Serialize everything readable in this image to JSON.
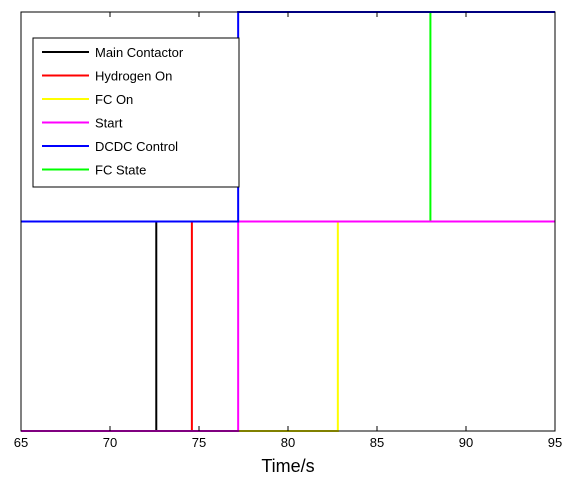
{
  "chart_data": {
    "type": "line",
    "xlabel": "Time/s",
    "ylabel": "",
    "title": "",
    "xlim": [
      65,
      95
    ],
    "ylim": [
      0,
      1
    ],
    "x_ticks": [
      "65",
      "70",
      "75",
      "80",
      "85",
      "90",
      "95"
    ],
    "x_tick_values": [
      65,
      70,
      75,
      80,
      85,
      90,
      95
    ],
    "grid": false,
    "legend_position": "top-left",
    "series": [
      {
        "name": "Main Contactor",
        "color": "#000000",
        "points": [
          [
            65,
            0
          ],
          [
            72.6,
            0
          ],
          [
            72.6,
            0.5
          ],
          [
            95,
            0.5
          ]
        ]
      },
      {
        "name": "Hydrogen On",
        "color": "#ff0000",
        "points": [
          [
            65,
            0
          ],
          [
            74.6,
            0
          ],
          [
            74.6,
            0.5
          ],
          [
            95,
            0.5
          ]
        ]
      },
      {
        "name": "FC On",
        "color": "#ffff00",
        "points": [
          [
            65,
            0
          ],
          [
            82.8,
            0
          ],
          [
            82.8,
            0.5
          ],
          [
            95,
            0.5
          ]
        ]
      },
      {
        "name": "Start",
        "color": "#ff00ff",
        "points": [
          [
            65,
            0
          ],
          [
            77.2,
            0
          ],
          [
            77.2,
            0.5
          ],
          [
            95,
            0.5
          ]
        ]
      },
      {
        "name": "DCDC Control",
        "color": "#0000ff",
        "points": [
          [
            65,
            0.5
          ],
          [
            77.2,
            0.5
          ],
          [
            77.2,
            1.0
          ],
          [
            95,
            1.0
          ]
        ]
      },
      {
        "name": "FC State",
        "color": "#00ff00",
        "points": [
          [
            65,
            0.5
          ],
          [
            88.0,
            0.5
          ],
          [
            88.0,
            1.0
          ],
          [
            95,
            1.0
          ]
        ]
      }
    ]
  }
}
